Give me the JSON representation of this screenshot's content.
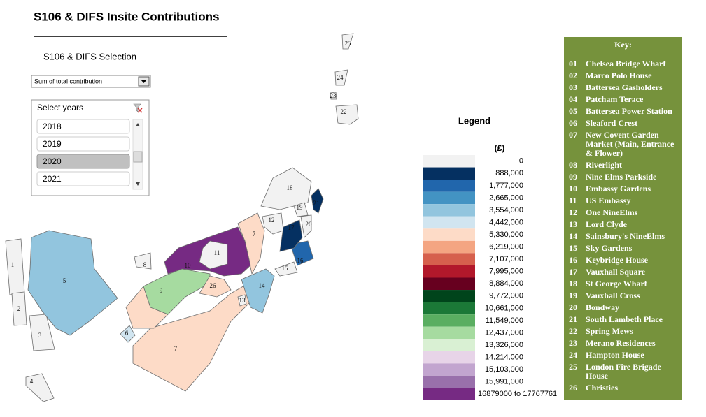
{
  "header": {
    "title": "S106 & DIFS Insite Contributions"
  },
  "selection": {
    "title": "S106 & DIFS Selection",
    "dropdown": "Sum of total contribution",
    "slicer_title": "Select years",
    "years": [
      "2018",
      "2019",
      "2020",
      "2021"
    ],
    "selected_year": "2020"
  },
  "legend": {
    "title": "Legend",
    "unit": "(£)",
    "items": [
      {
        "label": "0",
        "color": "#f2f2f2"
      },
      {
        "label": "888,000",
        "color": "#053061"
      },
      {
        "label": "1,777,000",
        "color": "#2166ac"
      },
      {
        "label": "2,665,000",
        "color": "#4393c3"
      },
      {
        "label": "3,554,000",
        "color": "#92c5de"
      },
      {
        "label": "4,442,000",
        "color": "#d1e5f0"
      },
      {
        "label": "5,330,000",
        "color": "#fddbc7"
      },
      {
        "label": "6,219,000",
        "color": "#f4a582"
      },
      {
        "label": "7,107,000",
        "color": "#d6604d"
      },
      {
        "label": "7,995,000",
        "color": "#b2182b"
      },
      {
        "label": "8,884,000",
        "color": "#67001f"
      },
      {
        "label": "9,772,000",
        "color": "#00441b"
      },
      {
        "label": "10,661,000",
        "color": "#1b7837"
      },
      {
        "label": "11,549,000",
        "color": "#5aae61"
      },
      {
        "label": "12,437,000",
        "color": "#a6dba0"
      },
      {
        "label": "13,326,000",
        "color": "#d9f0d3"
      },
      {
        "label": "14,214,000",
        "color": "#e7d4e8"
      },
      {
        "label": "15,103,000",
        "color": "#c2a5cf"
      },
      {
        "label": "15,991,000",
        "color": "#9970ab"
      },
      {
        "label": "16879000 to 17767761",
        "color": "#762a83"
      }
    ]
  },
  "key": {
    "title": "Key:",
    "items": [
      {
        "number": "01",
        "name": "Chelsea Bridge Wharf"
      },
      {
        "number": "02",
        "name": "Marco Polo House"
      },
      {
        "number": "03",
        "name": "Battersea Gasholders"
      },
      {
        "number": "04",
        "name": "Patcham Terace"
      },
      {
        "number": "05",
        "name": "Battersea Power Station"
      },
      {
        "number": "06",
        "name": "Sleaford Crest"
      },
      {
        "number": "07",
        "name": "New Covent Garden Market (Main, Entrance & Flower)"
      },
      {
        "number": "08",
        "name": "Riverlight"
      },
      {
        "number": "09",
        "name": "Nine Elms Parkside"
      },
      {
        "number": "10",
        "name": "Embassy Gardens"
      },
      {
        "number": "11",
        "name": "US Embassy"
      },
      {
        "number": "12",
        "name": "One NineElms"
      },
      {
        "number": "13",
        "name": "Lord  Clyde"
      },
      {
        "number": "14",
        "name": "Sainsbury's NineElms"
      },
      {
        "number": "15",
        "name": "Sky Gardens"
      },
      {
        "number": "16",
        "name": "Keybridge House"
      },
      {
        "number": "17",
        "name": "Vauxhall Square"
      },
      {
        "number": "18",
        "name": "St George Wharf"
      },
      {
        "number": "19",
        "name": "Vauxhall Cross"
      },
      {
        "number": "20",
        "name": "Bondway"
      },
      {
        "number": "21",
        "name": "South Lambeth Place"
      },
      {
        "number": "22",
        "name": "Spring Mews"
      },
      {
        "number": "23",
        "name": "Merano Residences"
      },
      {
        "number": "24",
        "name": "Hampton House"
      },
      {
        "number": "25",
        "name": "London Fire Brigade House"
      },
      {
        "number": "26",
        "name": "Christies"
      }
    ]
  },
  "map": {
    "region_labels": [
      "1",
      "2",
      "3",
      "4",
      "5",
      "6",
      "7",
      "7",
      "8",
      "9",
      "10",
      "11",
      "12",
      "13",
      "14",
      "15",
      "16",
      "17",
      "18",
      "19",
      "20",
      "21",
      "22",
      "23",
      "24",
      "25",
      "26"
    ]
  }
}
